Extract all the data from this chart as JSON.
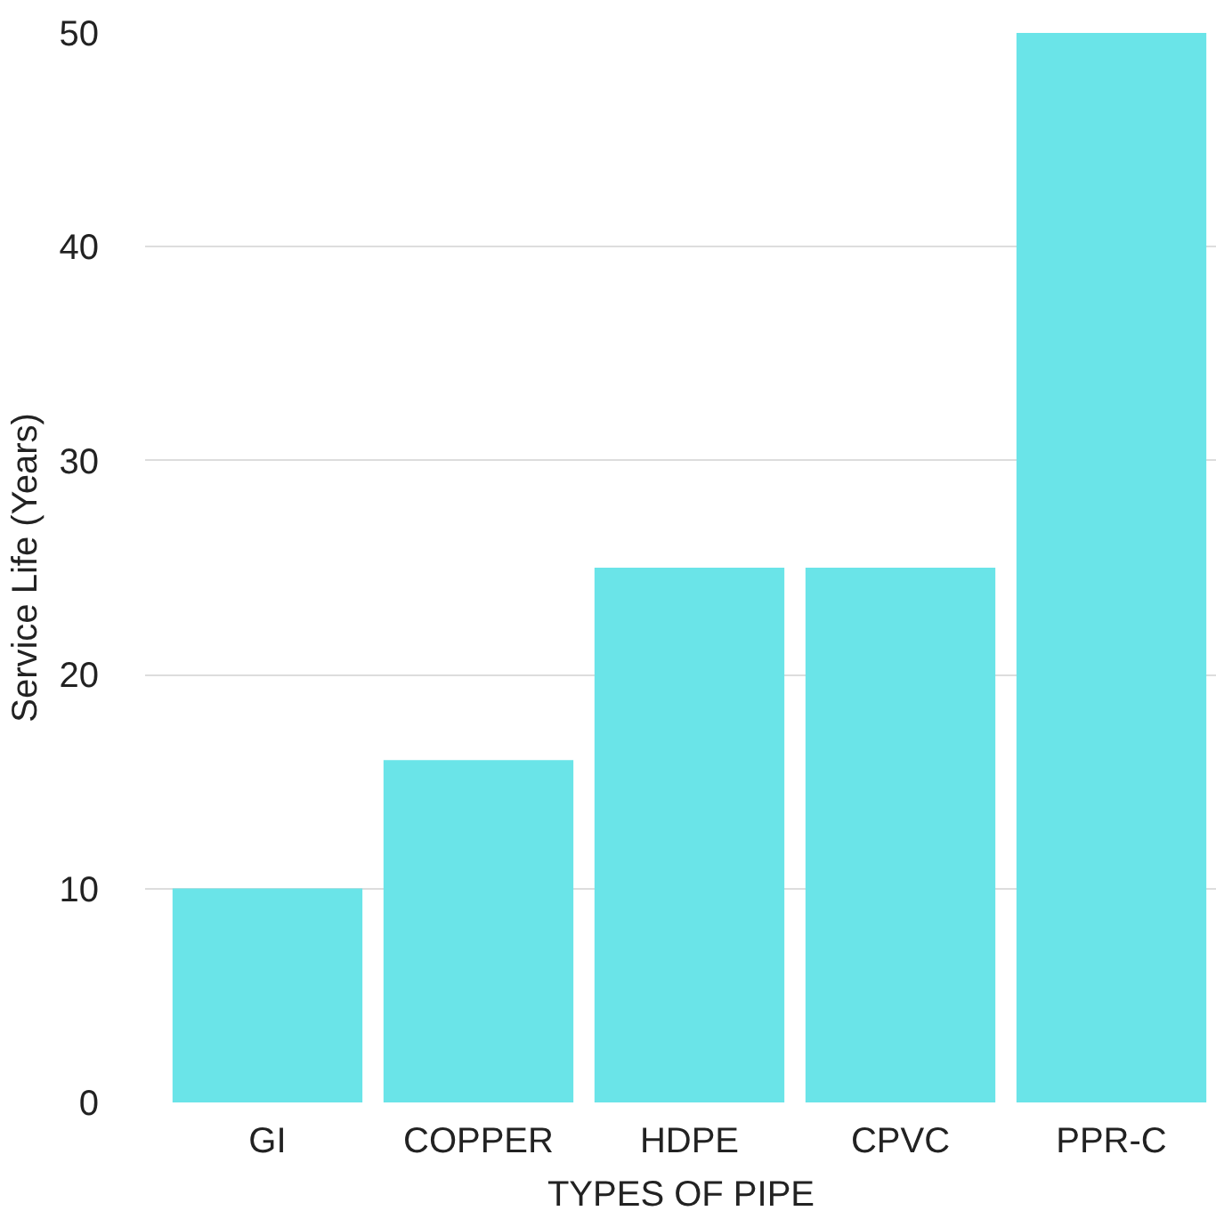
{
  "chart_data": {
    "type": "bar",
    "xlabel": "TYPES OF PIPE",
    "ylabel": "Service Life (Years)",
    "categories": [
      "GI",
      "COPPER",
      "HDPE",
      "CPVC",
      "PPR-C"
    ],
    "values": [
      10,
      16,
      25,
      25,
      50
    ],
    "color": "#6ae4e8",
    "ylim": [
      0,
      50
    ],
    "yticks": [
      0,
      10,
      20,
      30,
      40,
      50
    ],
    "grid": "y"
  }
}
